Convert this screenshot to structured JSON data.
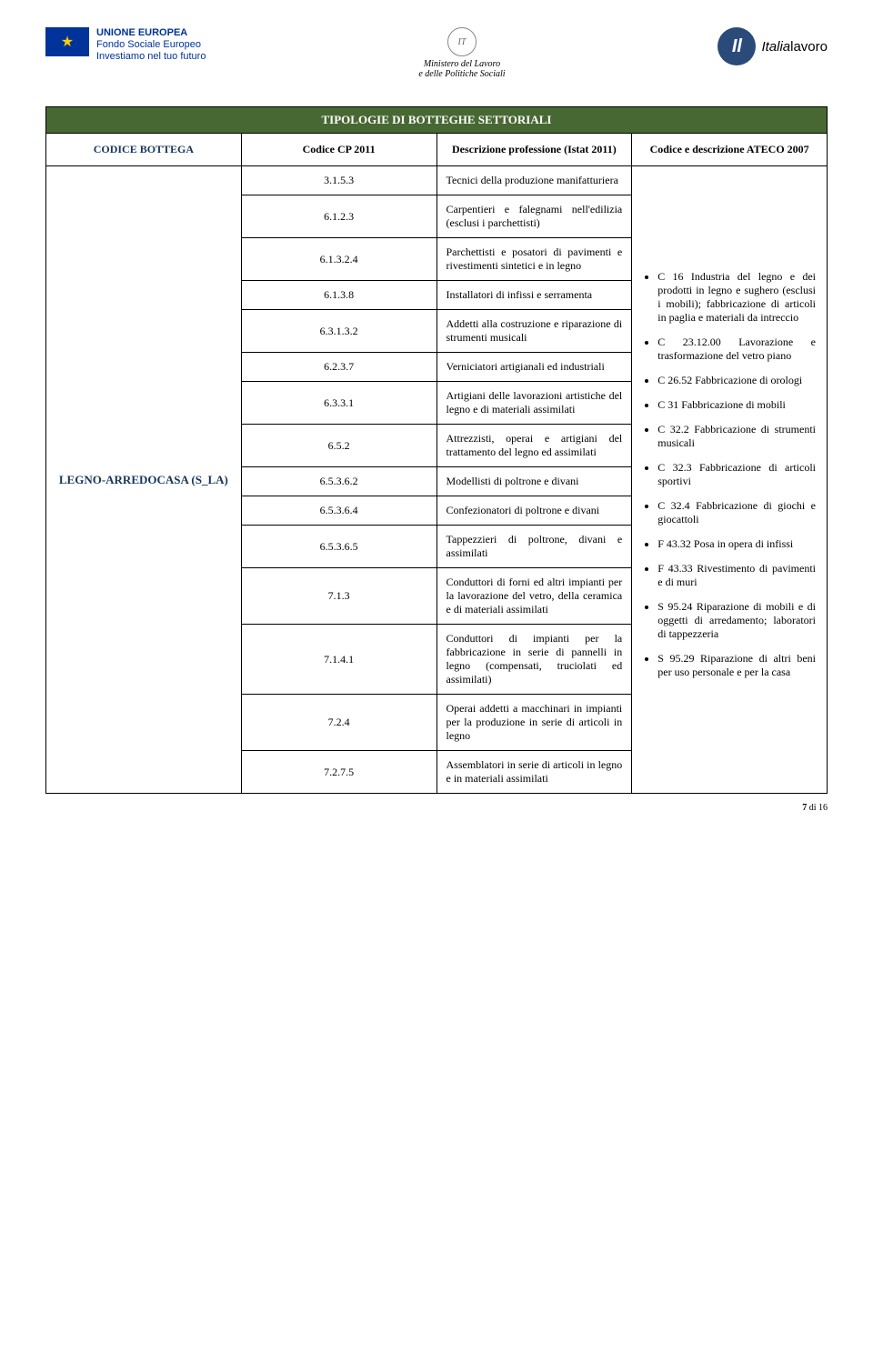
{
  "logos": {
    "eu_title": "UNIONE EUROPEA",
    "eu_line1": "Fondo Sociale Europeo",
    "eu_line2": "Investiamo nel tuo futuro",
    "center_line1": "Ministero del Lavoro",
    "center_line2": "e delle Politiche Sociali",
    "right_prefix": "Italia",
    "right_suffix": "lavoro"
  },
  "table": {
    "title": "TIPOLOGIE DI BOTTEGHE SETTORIALI",
    "headers": {
      "col1": "CODICE BOTTEGA",
      "col2": "Codice CP 2011",
      "col3": "Descrizione professione (Istat 2011)",
      "col4": "Codice e descrizione ATECO 2007"
    },
    "bottega_code": "LEGNO-ARREDOCASA (S_LA)",
    "rows": [
      {
        "cp": "3.1.5.3",
        "desc": "Tecnici della produzione manifatturiera"
      },
      {
        "cp": "6.1.2.3",
        "desc": "Carpentieri e falegnami nell'edilizia (esclusi i parchettisti)"
      },
      {
        "cp": "6.1.3.2.4",
        "desc": "Parchettisti e posatori di pavimenti e rivestimenti sintetici e in legno"
      },
      {
        "cp": "6.1.3.8",
        "desc": "Installatori di infissi e serramenta"
      },
      {
        "cp": "6.3.1.3.2",
        "desc": "Addetti alla costruzione e riparazione di strumenti musicali"
      },
      {
        "cp": "6.2.3.7",
        "desc": "Verniciatori artigianali ed industriali"
      },
      {
        "cp": "6.3.3.1",
        "desc": "Artigiani delle lavorazioni artistiche del legno e di materiali assimilati"
      },
      {
        "cp": "6.5.2",
        "desc": "Attrezzisti, operai e artigiani del trattamento del legno ed assimilati"
      },
      {
        "cp": "6.5.3.6.2",
        "desc": "Modellisti di poltrone e divani"
      },
      {
        "cp": "6.5.3.6.4",
        "desc": "Confezionatori di poltrone e divani"
      },
      {
        "cp": "6.5.3.6.5",
        "desc": "Tappezzieri di poltrone, divani e assimilati"
      },
      {
        "cp": "7.1.3",
        "desc": "Conduttori di forni ed altri impianti per la lavorazione del vetro, della ceramica e di materiali assimilati"
      },
      {
        "cp": "7.1.4.1",
        "desc": "Conduttori di impianti per la fabbricazione in serie di pannelli in legno (compensati, truciolati ed assimilati)"
      },
      {
        "cp": "7.2.4",
        "desc": "Operai addetti a macchinari in impianti per la produzione in serie di articoli in legno"
      },
      {
        "cp": "7.2.7.5",
        "desc": "Assemblatori in serie di articoli in legno e in materiali assimilati"
      }
    ],
    "ateco": [
      "C 16 Industria del legno e dei prodotti in legno e sughero (esclusi i mobili); fabbricazione di articoli in paglia e materiali da intreccio",
      "C 23.12.00 Lavorazione e trasformazione del vetro piano",
      "C 26.52 Fabbricazione di orologi",
      "C 31 Fabbricazione di mobili",
      "C 32.2 Fabbricazione di strumenti musicali",
      "C 32.3 Fabbricazione di articoli sportivi",
      "C 32.4 Fabbricazione di giochi e giocattoli",
      "F 43.32 Posa in opera di infissi",
      "F 43.33 Rivestimento di pavimenti e di muri",
      "S 95.24 Riparazione di mobili e di oggetti di arredamento; laboratori di tappezzeria",
      "S 95.29 Riparazione di altri beni per uso personale e per la casa"
    ]
  },
  "footer": {
    "page_current": "7",
    "page_sep": " di ",
    "page_total": "16"
  }
}
